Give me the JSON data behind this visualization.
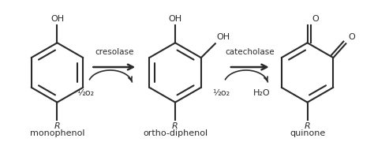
{
  "bg_color": "#ffffff",
  "line_color": "#2a2a2a",
  "text_color": "#2a2a2a",
  "fig_width": 4.74,
  "fig_height": 1.8,
  "dpi": 100,
  "labels": {
    "monophenol": "monophenol",
    "ortho": "ortho-diphenol",
    "quinone": "quinone",
    "cresolase": "cresolase",
    "catecholase": "catecholase",
    "half_o2": "½o₂",
    "h2o": "H₂O"
  }
}
